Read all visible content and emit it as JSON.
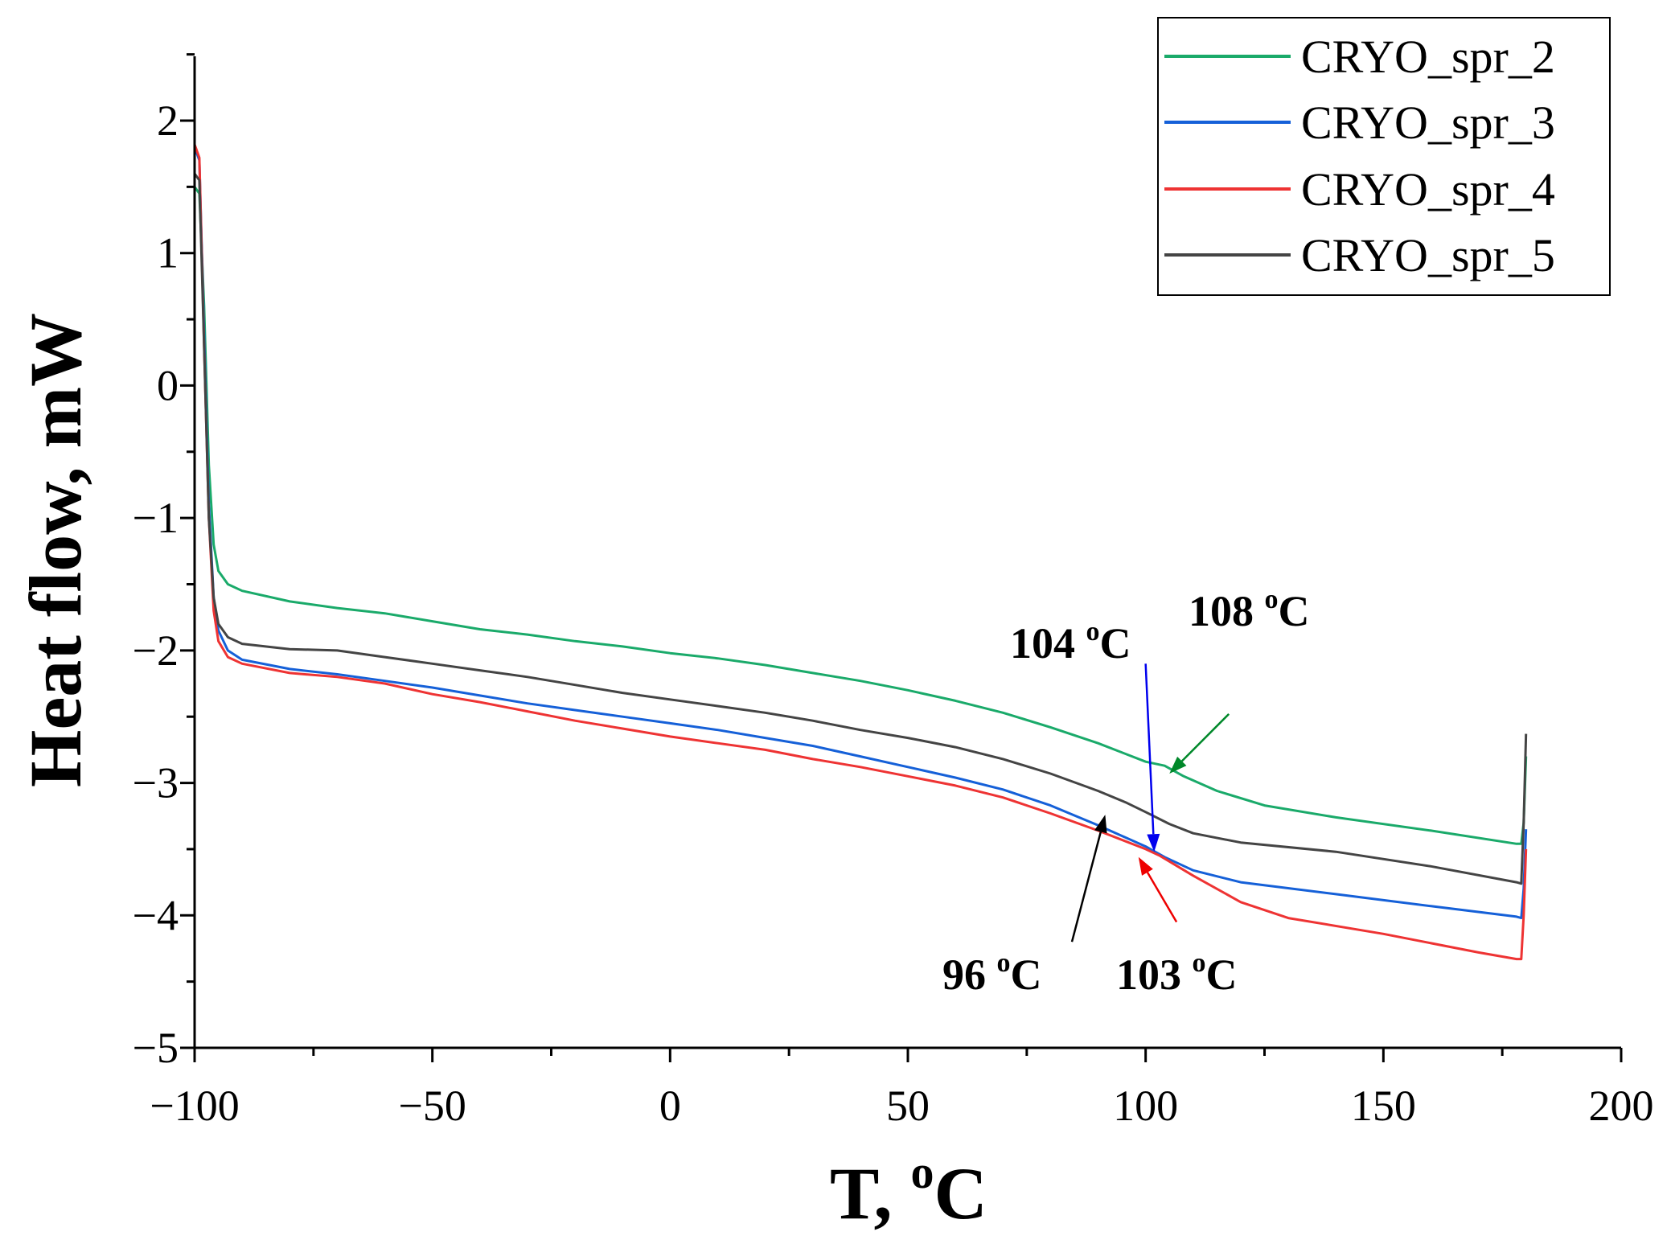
{
  "chart_data": {
    "type": "line",
    "title": "",
    "xlabel": "T, °C",
    "xlabel_main": "T, ",
    "xlabel_sup": "o",
    "xlabel_unit": "C",
    "ylabel": "Heat flow, mW",
    "xlim": [
      -100,
      200
    ],
    "ylim": [
      -5,
      2.5
    ],
    "x_ticks": [
      -100,
      -50,
      0,
      50,
      100,
      150,
      200
    ],
    "x_tick_labels": [
      "−100",
      "−50",
      "0",
      "50",
      "100",
      "150",
      "200"
    ],
    "y_ticks": [
      -5,
      -4,
      -3,
      -2,
      -1,
      0,
      1,
      2
    ],
    "y_tick_labels": [
      "−5",
      "−4",
      "−3",
      "−2",
      "−1",
      "0",
      "1",
      "2"
    ],
    "grid": false,
    "legend_position": "top-right",
    "series": [
      {
        "name": "CRYO_spr_2",
        "color": "#1aaa6a",
        "points": [
          [
            -100,
            1.5
          ],
          [
            -99,
            1.45
          ],
          [
            -98,
            0.6
          ],
          [
            -97,
            -0.6
          ],
          [
            -96,
            -1.2
          ],
          [
            -95,
            -1.4
          ],
          [
            -93,
            -1.5
          ],
          [
            -90,
            -1.55
          ],
          [
            -80,
            -1.63
          ],
          [
            -70,
            -1.68
          ],
          [
            -60,
            -1.72
          ],
          [
            -50,
            -1.78
          ],
          [
            -40,
            -1.84
          ],
          [
            -30,
            -1.88
          ],
          [
            -20,
            -1.93
          ],
          [
            -10,
            -1.97
          ],
          [
            0,
            -2.02
          ],
          [
            10,
            -2.06
          ],
          [
            20,
            -2.11
          ],
          [
            30,
            -2.17
          ],
          [
            40,
            -2.23
          ],
          [
            50,
            -2.3
          ],
          [
            60,
            -2.38
          ],
          [
            70,
            -2.47
          ],
          [
            80,
            -2.58
          ],
          [
            90,
            -2.7
          ],
          [
            100,
            -2.84
          ],
          [
            104,
            -2.87
          ],
          [
            108,
            -2.95
          ],
          [
            115,
            -3.06
          ],
          [
            125,
            -3.17
          ],
          [
            140,
            -3.26
          ],
          [
            160,
            -3.36
          ],
          [
            178,
            -3.46
          ],
          [
            179,
            -3.46
          ],
          [
            179.5,
            -3.3
          ],
          [
            180,
            -2.8
          ]
        ]
      },
      {
        "name": "CRYO_spr_3",
        "color": "#1560d8",
        "points": [
          [
            -100,
            1.8
          ],
          [
            -99,
            1.7
          ],
          [
            -98,
            0.4
          ],
          [
            -97,
            -0.9
          ],
          [
            -96,
            -1.6
          ],
          [
            -95,
            -1.85
          ],
          [
            -93,
            -2.0
          ],
          [
            -90,
            -2.07
          ],
          [
            -80,
            -2.14
          ],
          [
            -70,
            -2.18
          ],
          [
            -60,
            -2.23
          ],
          [
            -50,
            -2.28
          ],
          [
            -40,
            -2.34
          ],
          [
            -30,
            -2.4
          ],
          [
            -20,
            -2.45
          ],
          [
            -10,
            -2.5
          ],
          [
            0,
            -2.55
          ],
          [
            10,
            -2.6
          ],
          [
            20,
            -2.66
          ],
          [
            30,
            -2.72
          ],
          [
            40,
            -2.8
          ],
          [
            50,
            -2.88
          ],
          [
            60,
            -2.96
          ],
          [
            70,
            -3.05
          ],
          [
            80,
            -3.17
          ],
          [
            90,
            -3.32
          ],
          [
            100,
            -3.48
          ],
          [
            104,
            -3.56
          ],
          [
            110,
            -3.66
          ],
          [
            120,
            -3.75
          ],
          [
            140,
            -3.84
          ],
          [
            160,
            -3.93
          ],
          [
            178,
            -4.01
          ],
          [
            179,
            -4.02
          ],
          [
            179.5,
            -3.8
          ],
          [
            180,
            -3.35
          ]
        ]
      },
      {
        "name": "CRYO_spr_4",
        "color": "#ee3333",
        "points": [
          [
            -100,
            1.82
          ],
          [
            -99,
            1.72
          ],
          [
            -98,
            0.3
          ],
          [
            -97,
            -1.0
          ],
          [
            -96,
            -1.7
          ],
          [
            -95,
            -1.93
          ],
          [
            -93,
            -2.05
          ],
          [
            -90,
            -2.1
          ],
          [
            -80,
            -2.17
          ],
          [
            -70,
            -2.2
          ],
          [
            -60,
            -2.25
          ],
          [
            -50,
            -2.33
          ],
          [
            -40,
            -2.39
          ],
          [
            -30,
            -2.46
          ],
          [
            -20,
            -2.53
          ],
          [
            -10,
            -2.59
          ],
          [
            0,
            -2.65
          ],
          [
            10,
            -2.7
          ],
          [
            20,
            -2.75
          ],
          [
            30,
            -2.82
          ],
          [
            40,
            -2.88
          ],
          [
            50,
            -2.95
          ],
          [
            60,
            -3.02
          ],
          [
            70,
            -3.11
          ],
          [
            80,
            -3.23
          ],
          [
            90,
            -3.36
          ],
          [
            100,
            -3.5
          ],
          [
            103,
            -3.55
          ],
          [
            110,
            -3.7
          ],
          [
            120,
            -3.9
          ],
          [
            130,
            -4.02
          ],
          [
            150,
            -4.14
          ],
          [
            170,
            -4.28
          ],
          [
            178,
            -4.33
          ],
          [
            179,
            -4.33
          ],
          [
            179.5,
            -4.0
          ],
          [
            180,
            -3.5
          ]
        ]
      },
      {
        "name": "CRYO_spr_5",
        "color": "#444444",
        "points": [
          [
            -100,
            1.6
          ],
          [
            -99,
            1.55
          ],
          [
            -98,
            0.3
          ],
          [
            -97,
            -1.0
          ],
          [
            -96,
            -1.6
          ],
          [
            -95,
            -1.8
          ],
          [
            -93,
            -1.9
          ],
          [
            -90,
            -1.95
          ],
          [
            -80,
            -1.99
          ],
          [
            -70,
            -2.0
          ],
          [
            -60,
            -2.05
          ],
          [
            -50,
            -2.1
          ],
          [
            -40,
            -2.15
          ],
          [
            -30,
            -2.2
          ],
          [
            -20,
            -2.26
          ],
          [
            -10,
            -2.32
          ],
          [
            0,
            -2.37
          ],
          [
            10,
            -2.42
          ],
          [
            20,
            -2.47
          ],
          [
            30,
            -2.53
          ],
          [
            40,
            -2.6
          ],
          [
            50,
            -2.66
          ],
          [
            60,
            -2.73
          ],
          [
            70,
            -2.82
          ],
          [
            80,
            -2.93
          ],
          [
            90,
            -3.06
          ],
          [
            96,
            -3.15
          ],
          [
            100,
            -3.22
          ],
          [
            105,
            -3.31
          ],
          [
            110,
            -3.38
          ],
          [
            120,
            -3.45
          ],
          [
            140,
            -3.52
          ],
          [
            160,
            -3.63
          ],
          [
            178,
            -3.75
          ],
          [
            179,
            -3.76
          ],
          [
            179.5,
            -3.3
          ],
          [
            180,
            -2.63
          ]
        ]
      }
    ],
    "annotations": [
      {
        "text": "108 ",
        "sup": "o",
        "unit": "C",
        "color": "#00882a",
        "tail": [
          117.5,
          -2.48
        ],
        "head": [
          105,
          -2.93
        ]
      },
      {
        "text": "104 ",
        "sup": "o",
        "unit": "C",
        "color": "#0000ee",
        "tail": [
          100,
          -2.1
        ],
        "head": [
          101.8,
          -3.52
        ]
      },
      {
        "text": "103 ",
        "sup": "o",
        "unit": "C",
        "color": "#ee0000",
        "tail": [
          106.5,
          -4.05
        ],
        "head": [
          98.5,
          -3.56
        ]
      },
      {
        "text": "96 ",
        "sup": "o",
        "unit": "C",
        "color": "#000000",
        "tail": [
          84.5,
          -4.2
        ],
        "head": [
          91.5,
          -3.24
        ]
      }
    ]
  }
}
